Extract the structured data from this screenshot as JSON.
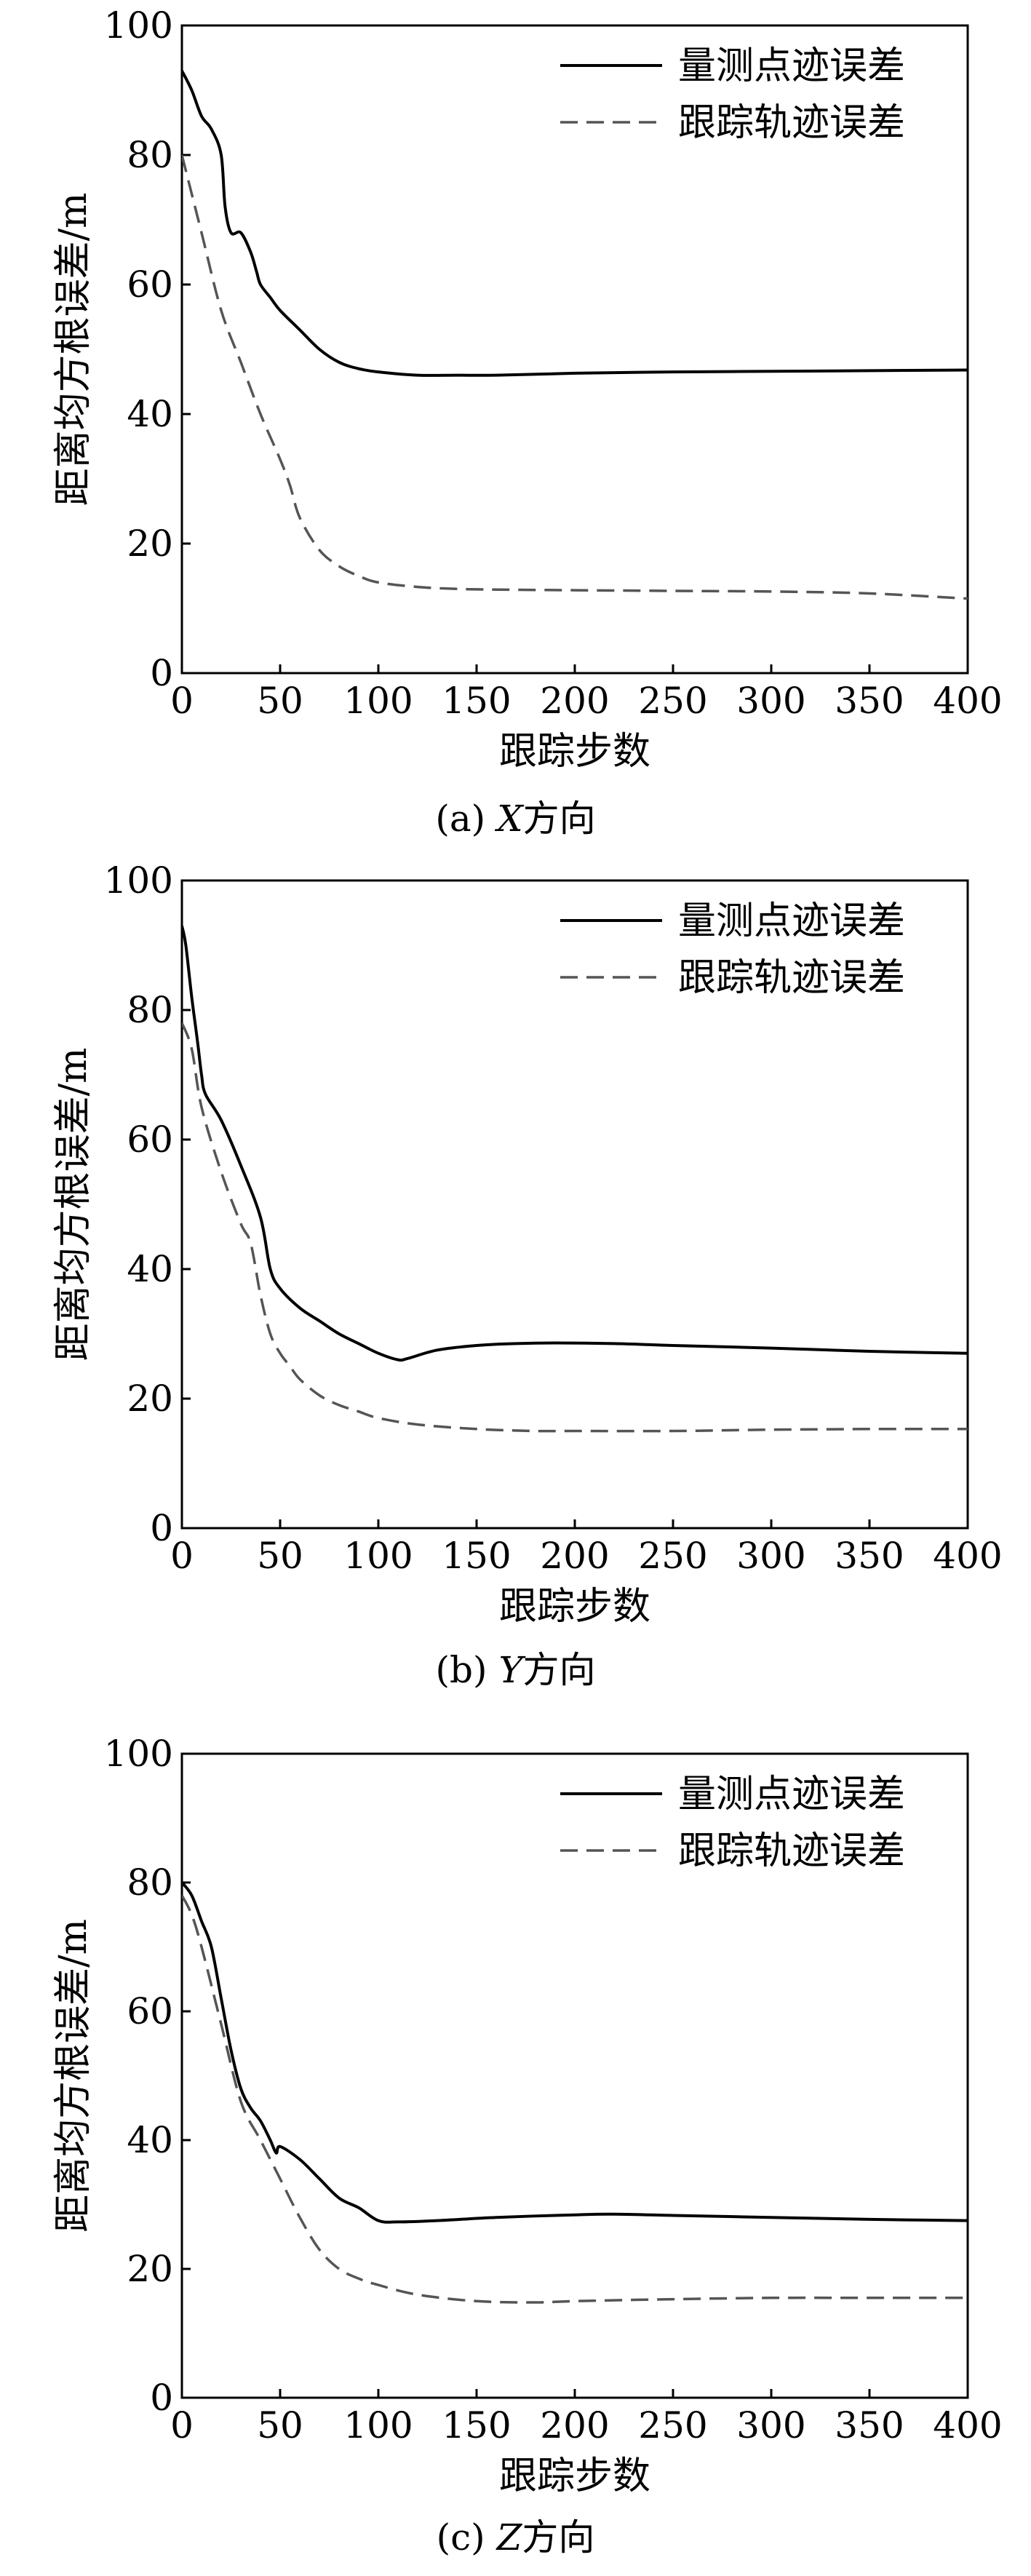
{
  "chart_data": [
    {
      "type": "line",
      "caption_prefix": "(a)",
      "caption_axis": "X",
      "caption_suffix": "方向",
      "xlabel": "跟踪步数",
      "ylabel": "距离均方根误差/m",
      "xlim": [
        0,
        400
      ],
      "ylim": [
        0,
        100
      ],
      "xticks": [
        0,
        50,
        100,
        150,
        200,
        250,
        300,
        350,
        400
      ],
      "yticks": [
        0,
        20,
        40,
        60,
        80,
        100
      ],
      "grid": false,
      "legend_position": "top-right",
      "series": [
        {
          "name": "量测点迹误差",
          "style": "solid",
          "color": "#000000",
          "x": [
            0,
            5,
            10,
            15,
            20,
            22,
            25,
            30,
            35,
            38,
            40,
            45,
            50,
            60,
            70,
            80,
            90,
            100,
            120,
            140,
            160,
            200,
            250,
            300,
            350,
            400
          ],
          "y": [
            93,
            90,
            86,
            84,
            80,
            72,
            68,
            68,
            65,
            62,
            60,
            58,
            56,
            53,
            50,
            48,
            47,
            46.5,
            46,
            46,
            46,
            46.3,
            46.5,
            46.6,
            46.7,
            46.8
          ]
        },
        {
          "name": "跟踪轨迹误差",
          "style": "dashed",
          "color": "#555555",
          "x": [
            0,
            5,
            10,
            20,
            30,
            40,
            50,
            55,
            60,
            70,
            80,
            90,
            100,
            120,
            140,
            160,
            200,
            250,
            300,
            350,
            400
          ],
          "y": [
            80,
            74,
            68,
            56,
            48,
            40,
            33,
            29,
            24,
            19,
            16.5,
            15,
            14,
            13.3,
            13,
            12.9,
            12.8,
            12.7,
            12.6,
            12.3,
            11.5
          ]
        }
      ]
    },
    {
      "type": "line",
      "caption_prefix": "(b)",
      "caption_axis": "Y",
      "caption_suffix": "方向",
      "xlabel": "跟踪步数",
      "ylabel": "距离均方根误差/m",
      "xlim": [
        0,
        400
      ],
      "ylim": [
        0,
        100
      ],
      "xticks": [
        0,
        50,
        100,
        150,
        200,
        250,
        300,
        350,
        400
      ],
      "yticks": [
        0,
        20,
        40,
        60,
        80,
        100
      ],
      "grid": false,
      "legend_position": "top-right",
      "series": [
        {
          "name": "量测点迹误差",
          "style": "solid",
          "color": "#000000",
          "x": [
            0,
            2,
            5,
            8,
            10,
            12,
            20,
            30,
            40,
            45,
            50,
            60,
            70,
            80,
            90,
            100,
            110,
            115,
            130,
            150,
            170,
            190,
            220,
            250,
            300,
            350,
            400
          ],
          "y": [
            93,
            90,
            82,
            75,
            70,
            67,
            63,
            56,
            48,
            40,
            37,
            34,
            32,
            30,
            28.5,
            27,
            26,
            26.2,
            27.5,
            28.2,
            28.5,
            28.6,
            28.5,
            28.2,
            27.8,
            27.3,
            27
          ]
        },
        {
          "name": "跟踪轨迹误差",
          "style": "dashed",
          "color": "#555555",
          "x": [
            0,
            5,
            10,
            20,
            30,
            35,
            40,
            45,
            50,
            55,
            60,
            70,
            80,
            90,
            100,
            120,
            150,
            180,
            200,
            250,
            300,
            350,
            400
          ],
          "y": [
            78,
            74,
            65,
            55,
            47,
            44,
            36,
            30,
            27,
            25,
            23,
            20.5,
            19,
            18,
            17,
            16,
            15.3,
            15,
            15,
            15,
            15.2,
            15.3,
            15.3
          ]
        }
      ]
    },
    {
      "type": "line",
      "caption_prefix": "(c)",
      "caption_axis": "Z",
      "caption_suffix": "方向",
      "xlabel": "跟踪步数",
      "ylabel": "距离均方根误差/m",
      "xlim": [
        0,
        400
      ],
      "ylim": [
        0,
        100
      ],
      "xticks": [
        0,
        50,
        100,
        150,
        200,
        250,
        300,
        350,
        400
      ],
      "yticks": [
        0,
        20,
        40,
        60,
        80,
        100
      ],
      "grid": false,
      "legend_position": "top-right",
      "series": [
        {
          "name": "量测点迹误差",
          "style": "solid",
          "color": "#000000",
          "x": [
            0,
            5,
            10,
            15,
            20,
            25,
            30,
            35,
            40,
            45,
            48,
            50,
            60,
            70,
            80,
            90,
            100,
            110,
            130,
            160,
            200,
            220,
            250,
            300,
            350,
            400
          ],
          "y": [
            80,
            78,
            74,
            70,
            62,
            54,
            48,
            45,
            43,
            40,
            38,
            39,
            37,
            34,
            31,
            29.5,
            27.5,
            27.3,
            27.5,
            28,
            28.4,
            28.5,
            28.3,
            28,
            27.7,
            27.5
          ]
        },
        {
          "name": "跟踪轨迹误差",
          "style": "dashed",
          "color": "#555555",
          "x": [
            0,
            5,
            10,
            20,
            30,
            40,
            50,
            60,
            70,
            80,
            90,
            100,
            120,
            150,
            180,
            200,
            250,
            300,
            350,
            400
          ],
          "y": [
            78,
            75,
            70,
            58,
            46,
            40,
            34,
            28,
            23,
            20,
            18.5,
            17.5,
            16,
            15,
            14.8,
            15,
            15.3,
            15.5,
            15.5,
            15.5
          ]
        }
      ]
    }
  ]
}
